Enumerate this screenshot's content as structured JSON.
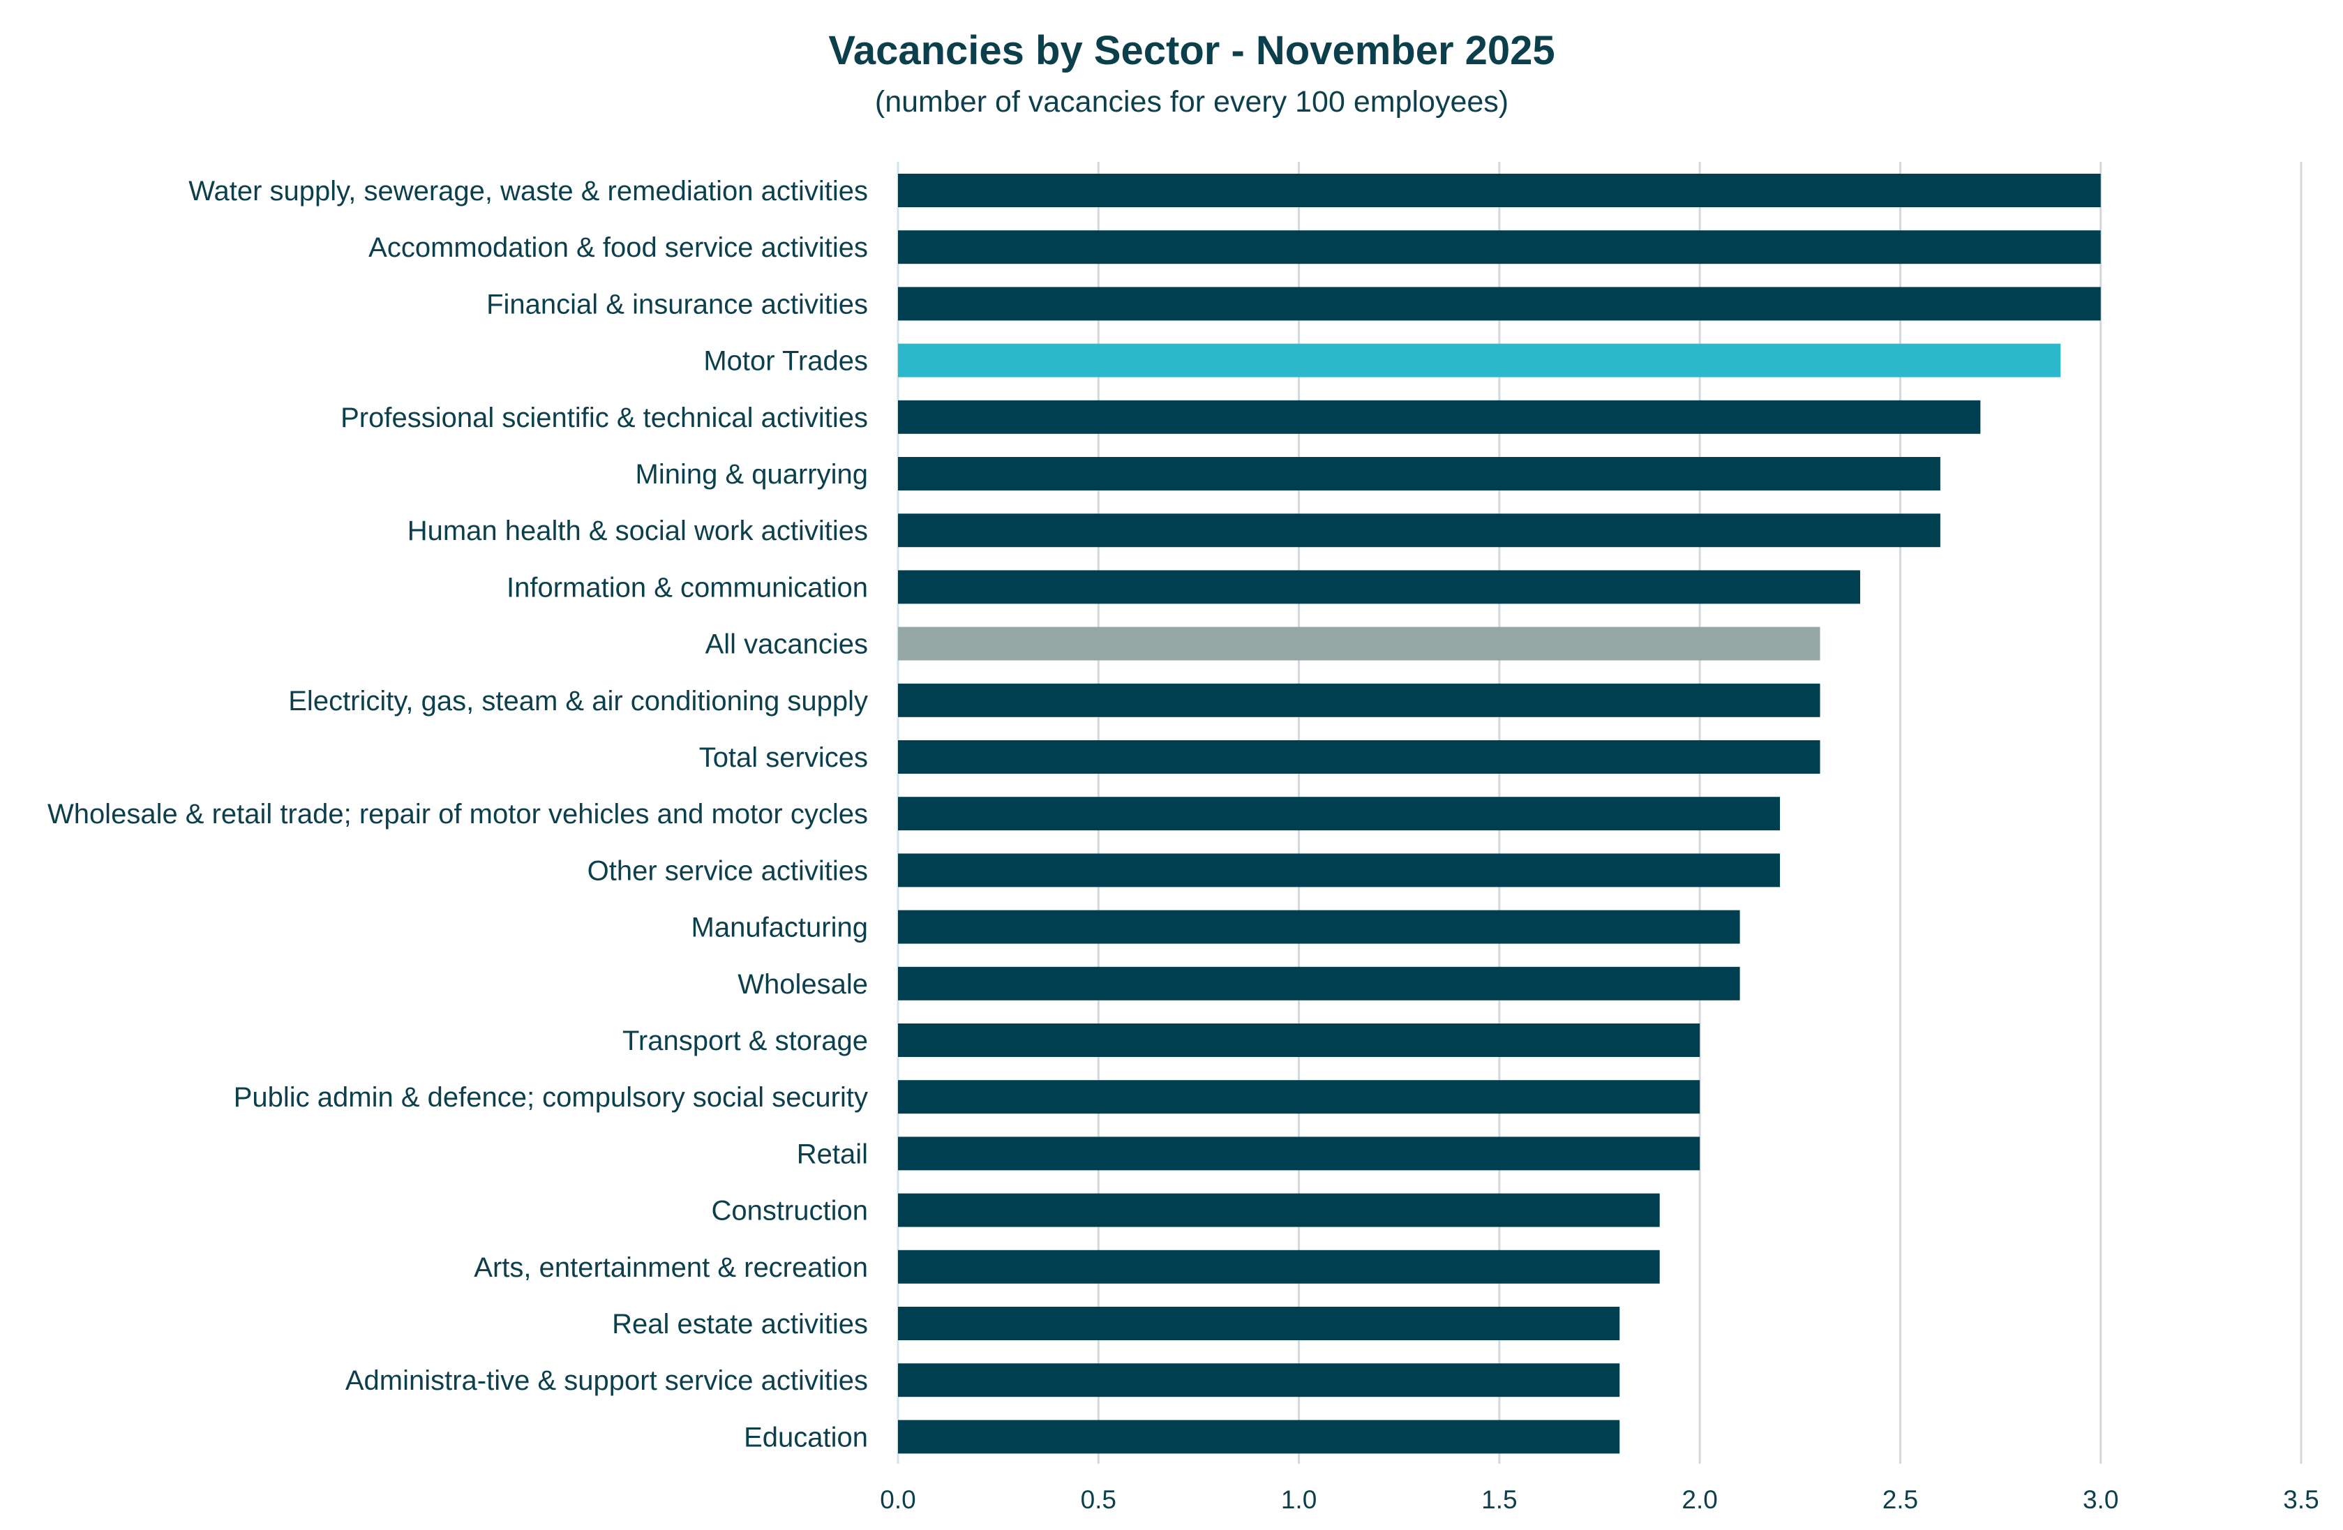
{
  "chart_data": {
    "type": "bar",
    "orientation": "horizontal",
    "title": "Vacancies by Sector  - November 2025",
    "subtitle": "(number of vacancies for every 100 employees)",
    "xlim": [
      0,
      3.5
    ],
    "xticks": [
      "0.0",
      "0.5",
      "1.0",
      "1.5",
      "2.0",
      "2.5",
      "3.0",
      "3.5"
    ],
    "grid": true,
    "legend": "none",
    "categories": [
      "Water supply, sewerage, waste & remediation activities",
      "Accommodation & food service activities",
      "Financial & insurance activities",
      "Motor Trades",
      "Professional scientific & technical activities",
      "Mining & quarrying",
      "Human health & social work activities",
      "Information & communication",
      "All vacancies",
      "Electricity, gas, steam & air conditioning supply",
      "Total services ",
      "Wholesale & retail trade; repair of motor vehicles and motor cycles",
      "Other service activities",
      "Manufacturing",
      "Wholesale",
      "Transport & storage",
      "Public admin & defence; compulsory social security",
      "Retail",
      "Construction",
      "Arts, entertainment & recreation",
      "Real estate activities",
      "Administra-tive & support service activities",
      "Education"
    ],
    "values": [
      3.0,
      3.0,
      3.0,
      2.9,
      2.7,
      2.6,
      2.6,
      2.4,
      2.3,
      2.3,
      2.3,
      2.2,
      2.2,
      2.1,
      2.1,
      2.0,
      2.0,
      2.0,
      1.9,
      1.9,
      1.8,
      1.8,
      1.8
    ],
    "bar_colors": [
      "#003f4f",
      "#003f4f",
      "#003f4f",
      "#2bb7cc",
      "#003f4f",
      "#003f4f",
      "#003f4f",
      "#003f4f",
      "#96a8a6",
      "#003f4f",
      "#003f4f",
      "#003f4f",
      "#003f4f",
      "#003f4f",
      "#003f4f",
      "#003f4f",
      "#003f4f",
      "#003f4f",
      "#003f4f",
      "#003f4f",
      "#003f4f",
      "#003f4f",
      "#003f4f"
    ]
  }
}
